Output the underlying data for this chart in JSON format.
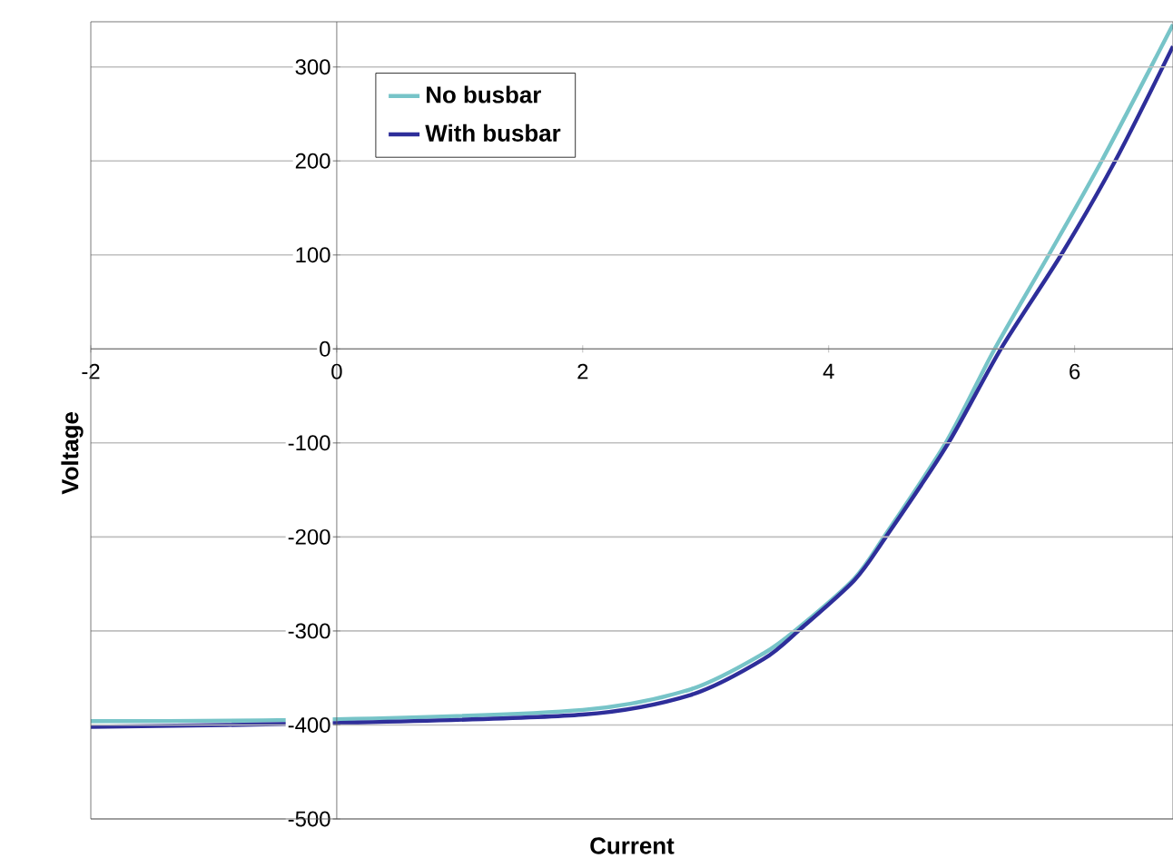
{
  "chart_data": {
    "type": "line",
    "xlabel": "Current",
    "ylabel": "Voltage",
    "xlim": [
      -2,
      6.8
    ],
    "ylim": [
      -500,
      348
    ],
    "xticks": [
      -2,
      0,
      2,
      4,
      6
    ],
    "yticks": [
      -500,
      -400,
      -300,
      -200,
      -100,
      0,
      100,
      200,
      300
    ],
    "grid": "y",
    "legend": "top left",
    "marker": "none",
    "line_style": "solid",
    "series": [
      {
        "name": "No busbar",
        "color": "#77c4c8",
        "x": [
          -2,
          0,
          2,
          2.88,
          3.47,
          3.77,
          4.21,
          4.46,
          4.96,
          5.35,
          5.79,
          6.22,
          6.8
        ],
        "values": [
          -396,
          -394,
          -384,
          -362,
          -324,
          -295,
          -244,
          -198,
          -98,
          0,
          100,
          200,
          345
        ]
      },
      {
        "name": "With busbar",
        "color": "#2e2e9a",
        "x": [
          -2,
          0,
          2,
          2.88,
          3.47,
          3.77,
          4.21,
          4.46,
          4.96,
          5.4,
          5.89,
          6.33,
          6.8
        ],
        "values": [
          -402,
          -398,
          -389,
          -368,
          -330,
          -298,
          -246,
          -201,
          -103,
          0,
          100,
          200,
          322
        ]
      }
    ]
  }
}
